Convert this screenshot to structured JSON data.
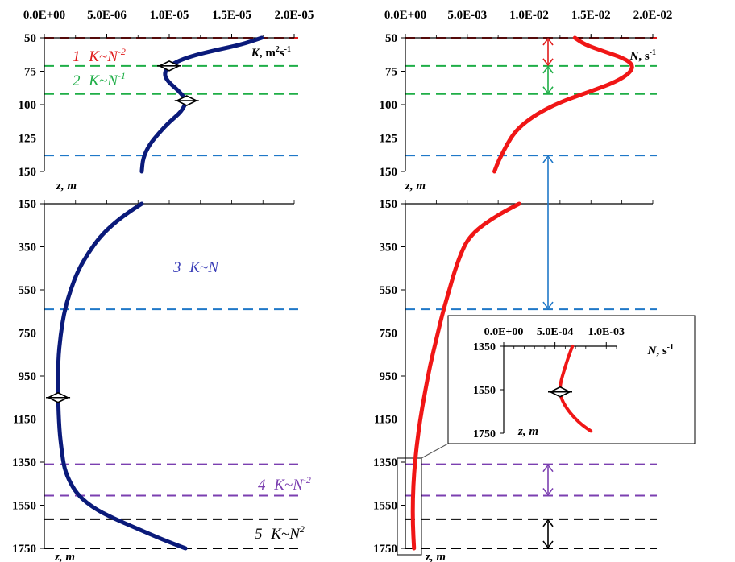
{
  "chart_data": [
    {
      "type": "line",
      "panel": "upper-left",
      "x_ticks": [
        "0.0E+00",
        "5.0E-06",
        "1.0E-05",
        "1.5E-05",
        "2.0E-05"
      ],
      "xlim": [
        0,
        2e-05
      ],
      "y_ticks": [
        "50",
        "75",
        "100",
        "125",
        "150"
      ],
      "ylim": [
        50,
        150
      ],
      "xlabel": {
        "main": "K",
        "unit": ", m",
        "sup1": "2",
        "unit2": "s",
        "sup2": "-1"
      },
      "ylabel": "z, m",
      "series": [
        {
          "color": "#0a1a7a",
          "x": [
            1.74e-05,
            1.58e-05,
            1.38e-05,
            1.2e-05,
            1.08e-05,
            1e-05,
            9.6e-06,
            9.8e-06,
            1.08e-05,
            1.14e-05,
            1.1e-05,
            1e-05,
            9.2e-06,
            8.4e-06,
            7.9e-06,
            7.8e-06
          ],
          "y": [
            50,
            55,
            59,
            63,
            67,
            71,
            76,
            82,
            90,
            97,
            105,
            113,
            121,
            130,
            140,
            150
          ]
        }
      ],
      "markers": [
        {
          "x": 1e-05,
          "y": 71
        },
        {
          "x": 1.14e-05,
          "y": 97
        }
      ],
      "hlines": [
        {
          "y": 50,
          "color": "#e01b1b"
        },
        {
          "y": 71,
          "color": "#1fae47"
        },
        {
          "y": 92,
          "color": "#1fae47"
        },
        {
          "y": 138,
          "color": "#1f78c8"
        }
      ],
      "annotations": [
        {
          "num": "1",
          "expr": "K~N",
          "sup": "-2",
          "color": "#e01b1b"
        },
        {
          "num": "2",
          "expr": "K~N",
          "sup": "-1",
          "color": "#1fae47"
        }
      ]
    },
    {
      "type": "line",
      "panel": "lower-left",
      "y_ticks": [
        "150",
        "350",
        "550",
        "750",
        "950",
        "1150",
        "1350",
        "1550",
        "1750"
      ],
      "ylim": [
        150,
        1750
      ],
      "xlim": [
        0,
        2e-05
      ],
      "ylabel": "z, m",
      "series": [
        {
          "color": "#0a1a7a",
          "x": [
            7.8e-06,
            7e-06,
            5.8e-06,
            4.5e-06,
            3.5e-06,
            2.7e-06,
            2.1e-06,
            1.6e-06,
            1.3e-06,
            1.1e-06,
            1.1e-06,
            1.2e-06,
            1.4e-06,
            1.6e-06,
            2.1e-06,
            2.8e-06,
            4e-06,
            5.5e-06,
            7.5e-06,
            9.5e-06,
            1.13e-05
          ],
          "y": [
            150,
            180,
            230,
            300,
            380,
            460,
            550,
            650,
            760,
            880,
            1050,
            1200,
            1300,
            1380,
            1450,
            1510,
            1565,
            1610,
            1660,
            1710,
            1750
          ]
        }
      ],
      "markers": [
        {
          "x": 1.1e-06,
          "y": 1050
        }
      ],
      "hlines": [
        {
          "y": 640,
          "color": "#1f78c8"
        },
        {
          "y": 1360,
          "color": "#7b3fb0"
        },
        {
          "y": 1505,
          "color": "#7b3fb0"
        },
        {
          "y": 1615,
          "color": "#000000"
        },
        {
          "y": 1750,
          "color": "#000000"
        }
      ],
      "annotations": [
        {
          "num": "3",
          "expr": "K~N",
          "sup": "",
          "color": "#3b3fb8"
        },
        {
          "num": "4",
          "expr": "K~N",
          "sup": "-2",
          "color": "#7b3fb0"
        },
        {
          "num": "5",
          "expr": "K~N",
          "sup": "2",
          "color": "#000000"
        }
      ]
    },
    {
      "type": "line",
      "panel": "upper-right",
      "x_ticks": [
        "0.0E+00",
        "5.0E-03",
        "1.0E-02",
        "1.5E-02",
        "2.0E-02"
      ],
      "xlim": [
        0,
        0.02
      ],
      "y_ticks": [
        "50",
        "75",
        "100",
        "125",
        "150"
      ],
      "ylim": [
        50,
        150
      ],
      "xlabel": {
        "main": "N",
        "unit": ", s",
        "sup1": "-1"
      },
      "ylabel": "z, m",
      "series": [
        {
          "color": "#f01616",
          "x": [
            0.0137,
            0.0145,
            0.016,
            0.0176,
            0.0184,
            0.0182,
            0.017,
            0.015,
            0.0128,
            0.011,
            0.0097,
            0.0088,
            0.0082,
            0.0077,
            0.0074,
            0.0072
          ],
          "y": [
            50,
            55,
            60,
            65,
            70,
            76,
            83,
            90,
            97,
            105,
            113,
            121,
            130,
            139,
            145,
            150
          ]
        }
      ],
      "hlines": [
        {
          "y": 50,
          "color": "#e01b1b"
        },
        {
          "y": 71,
          "color": "#1fae47"
        },
        {
          "y": 92,
          "color": "#1fae47"
        },
        {
          "y": 138,
          "color": "#1f78c8"
        }
      ]
    },
    {
      "type": "line",
      "panel": "lower-right",
      "y_ticks": [
        "150",
        "350",
        "550",
        "750",
        "950",
        "1150",
        "1350",
        "1550",
        "1750"
      ],
      "ylim": [
        150,
        1750
      ],
      "xlim": [
        0,
        0.02
      ],
      "ylabel": "z, m",
      "series": [
        {
          "color": "#f01616",
          "x": [
            0.0092,
            0.0082,
            0.007,
            0.0058,
            0.005,
            0.0045,
            0.004,
            0.0035,
            0.003,
            0.0025,
            0.002,
            0.0016,
            0.0012,
            0.0009,
            0.0007,
            0.0006,
            0.0006,
            0.0007
          ],
          "y": [
            150,
            180,
            220,
            270,
            320,
            380,
            460,
            560,
            660,
            780,
            900,
            1020,
            1150,
            1280,
            1400,
            1520,
            1640,
            1750
          ]
        }
      ],
      "hlines": [
        {
          "y": 640,
          "color": "#1f78c8"
        },
        {
          "y": 1360,
          "color": "#7b3fb0"
        },
        {
          "y": 1505,
          "color": "#7b3fb0"
        },
        {
          "y": 1615,
          "color": "#000000"
        },
        {
          "y": 1750,
          "color": "#000000"
        }
      ]
    },
    {
      "type": "line",
      "panel": "inset",
      "x_ticks": [
        "0.0E+00",
        "5.0E-04",
        "1.0E-03"
      ],
      "xlim": [
        0,
        0.0011
      ],
      "y_ticks": [
        "1350",
        "1550",
        "1750"
      ],
      "ylim": [
        1350,
        1750
      ],
      "xlabel": {
        "main": "N",
        "unit": ", s",
        "sup1": "-1"
      },
      "ylabel": "z, m",
      "series": [
        {
          "color": "#f01616",
          "x": [
            0.00067,
            0.00063,
            0.0006,
            0.00057,
            0.00055,
            0.00055,
            0.00057,
            0.00062,
            0.00069,
            0.00077,
            0.00085
          ],
          "y": [
            1350,
            1400,
            1445,
            1490,
            1530,
            1565,
            1600,
            1640,
            1680,
            1715,
            1740
          ]
        }
      ],
      "markers": [
        {
          "x": 0.00055,
          "y": 1560
        }
      ]
    }
  ]
}
